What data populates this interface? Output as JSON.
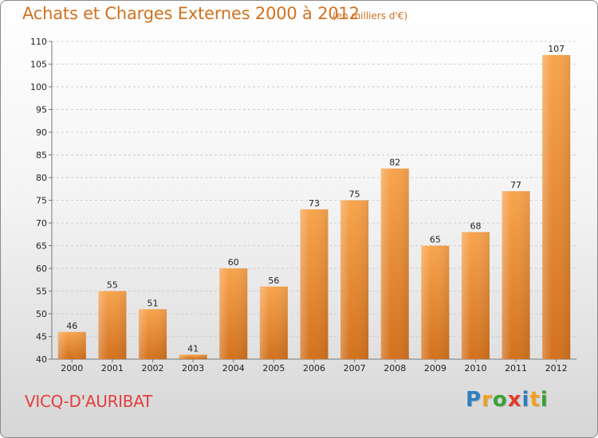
{
  "chart_data": {
    "type": "bar",
    "title": "Achats et Charges Externes 2000 à 2012",
    "subtitle": "(en milliers d'€)",
    "categories": [
      "2000",
      "2001",
      "2002",
      "2003",
      "2004",
      "2005",
      "2006",
      "2007",
      "2008",
      "2009",
      "2010",
      "2011",
      "2012"
    ],
    "values": [
      46,
      55,
      51,
      41,
      60,
      56,
      73,
      75,
      82,
      65,
      68,
      77,
      107
    ],
    "ylim": [
      40,
      110
    ],
    "yticks": [
      40,
      45,
      50,
      55,
      60,
      65,
      70,
      75,
      80,
      85,
      90,
      95,
      100,
      105,
      110
    ],
    "xlabel": "",
    "ylabel": "",
    "grid": true,
    "bar_color_light": "#f8a44e",
    "bar_color_dark": "#d2711e"
  },
  "footer": {
    "place": "VICQ-D'AURIBAT",
    "brand_letters": [
      "P",
      "r",
      "o",
      "x",
      "i",
      "t",
      "i"
    ],
    "brand_colors": [
      "#2d7fc0",
      "#f0a020",
      "#3aa03a",
      "#e23c2c",
      "#2d7fc0",
      "#f0a020",
      "#3aa03a"
    ]
  }
}
